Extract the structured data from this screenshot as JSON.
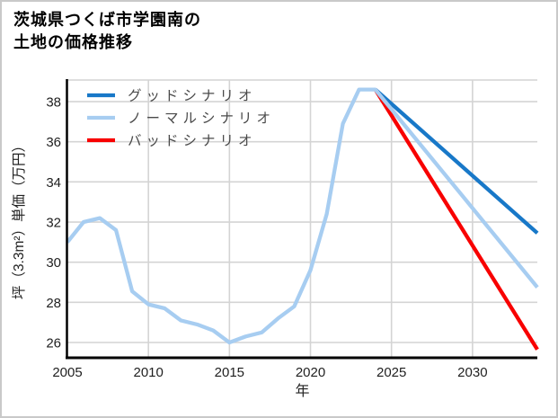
{
  "page": {
    "background": "#ffffff",
    "border_color": "#c9c9c9"
  },
  "title": {
    "line1": "茨城県つくば市学園南の",
    "line2": "土地の価格推移"
  },
  "chart_data": {
    "type": "line",
    "title": "茨城県つくば市学園南の土地の価格推移",
    "xlabel": "年",
    "ylabel": "坪（3.3m²）単価（万円）",
    "xlim": [
      2005,
      2034
    ],
    "ylim": [
      25.2,
      39.1
    ],
    "x_ticks": [
      2005,
      2010,
      2015,
      2020,
      2025,
      2030
    ],
    "y_ticks": [
      26,
      28,
      30,
      32,
      34,
      36,
      38
    ],
    "grid": true,
    "legend_position": "top-left",
    "colors": {
      "good": "#1878c8",
      "normal": "#a7cdf1",
      "bad": "#f80000",
      "gridline": "#d4d4d4",
      "axis": "#000000",
      "tick_label": "#1f1f1f",
      "legend_text": "#4a4a4a"
    },
    "series": [
      {
        "id": "good",
        "name": "グッドシナリオ",
        "color": "#1878c8",
        "role": "forecast",
        "x": [
          2024,
          2034
        ],
        "values": [
          38.6,
          31.45
        ]
      },
      {
        "id": "normal",
        "name": "ノーマルシナリオ",
        "color": "#a7cdf1",
        "role": "history-and-forecast",
        "x": [
          2005,
          2006,
          2007,
          2008,
          2009,
          2010,
          2011,
          2012,
          2013,
          2014,
          2015,
          2016,
          2017,
          2018,
          2019,
          2020,
          2021,
          2022,
          2023,
          2024,
          2034
        ],
        "values": [
          31.0,
          32.0,
          32.2,
          31.6,
          28.55,
          27.9,
          27.7,
          27.1,
          26.9,
          26.6,
          26.0,
          26.3,
          26.5,
          27.2,
          27.8,
          29.6,
          32.4,
          36.9,
          38.6,
          38.6,
          28.75
        ]
      },
      {
        "id": "bad",
        "name": "バッドシナリオ",
        "color": "#f80000",
        "role": "forecast",
        "x": [
          2024,
          2034
        ],
        "values": [
          38.6,
          25.65
        ]
      }
    ],
    "draw_order": [
      "good",
      "bad",
      "normal"
    ]
  }
}
